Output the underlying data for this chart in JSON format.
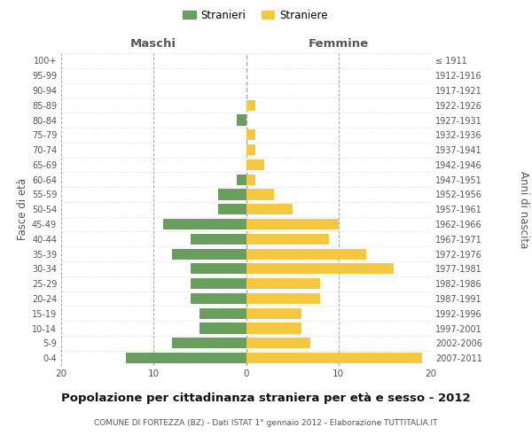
{
  "age_groups": [
    "100+",
    "95-99",
    "90-94",
    "85-89",
    "80-84",
    "75-79",
    "70-74",
    "65-69",
    "60-64",
    "55-59",
    "50-54",
    "45-49",
    "40-44",
    "35-39",
    "30-34",
    "25-29",
    "20-24",
    "15-19",
    "10-14",
    "5-9",
    "0-4"
  ],
  "birth_years": [
    "≤ 1911",
    "1912-1916",
    "1917-1921",
    "1922-1926",
    "1927-1931",
    "1932-1936",
    "1937-1941",
    "1942-1946",
    "1947-1951",
    "1952-1956",
    "1957-1961",
    "1962-1966",
    "1967-1971",
    "1972-1976",
    "1977-1981",
    "1982-1986",
    "1987-1991",
    "1992-1996",
    "1997-2001",
    "2002-2006",
    "2007-2011"
  ],
  "maschi": [
    0,
    0,
    0,
    0,
    1,
    0,
    0,
    0,
    1,
    3,
    3,
    9,
    6,
    8,
    6,
    6,
    6,
    5,
    5,
    8,
    13
  ],
  "femmine": [
    0,
    0,
    0,
    1,
    0,
    1,
    1,
    2,
    1,
    3,
    5,
    10,
    9,
    13,
    16,
    8,
    8,
    6,
    6,
    7,
    19
  ],
  "maschi_color": "#6a9e5e",
  "femmine_color": "#f5c842",
  "background_color": "#ffffff",
  "grid_color": "#cccccc",
  "title": "Popolazione per cittadinanza straniera per età e sesso - 2012",
  "subtitle": "COMUNE DI FORTEZZA (BZ) - Dati ISTAT 1° gennaio 2012 - Elaborazione TUTTITALIA.IT",
  "ylabel_left": "Fasce di età",
  "ylabel_right": "Anni di nascita",
  "legend_maschi": "Stranieri",
  "legend_femmine": "Straniere",
  "xlim": 20,
  "bar_height": 0.72
}
